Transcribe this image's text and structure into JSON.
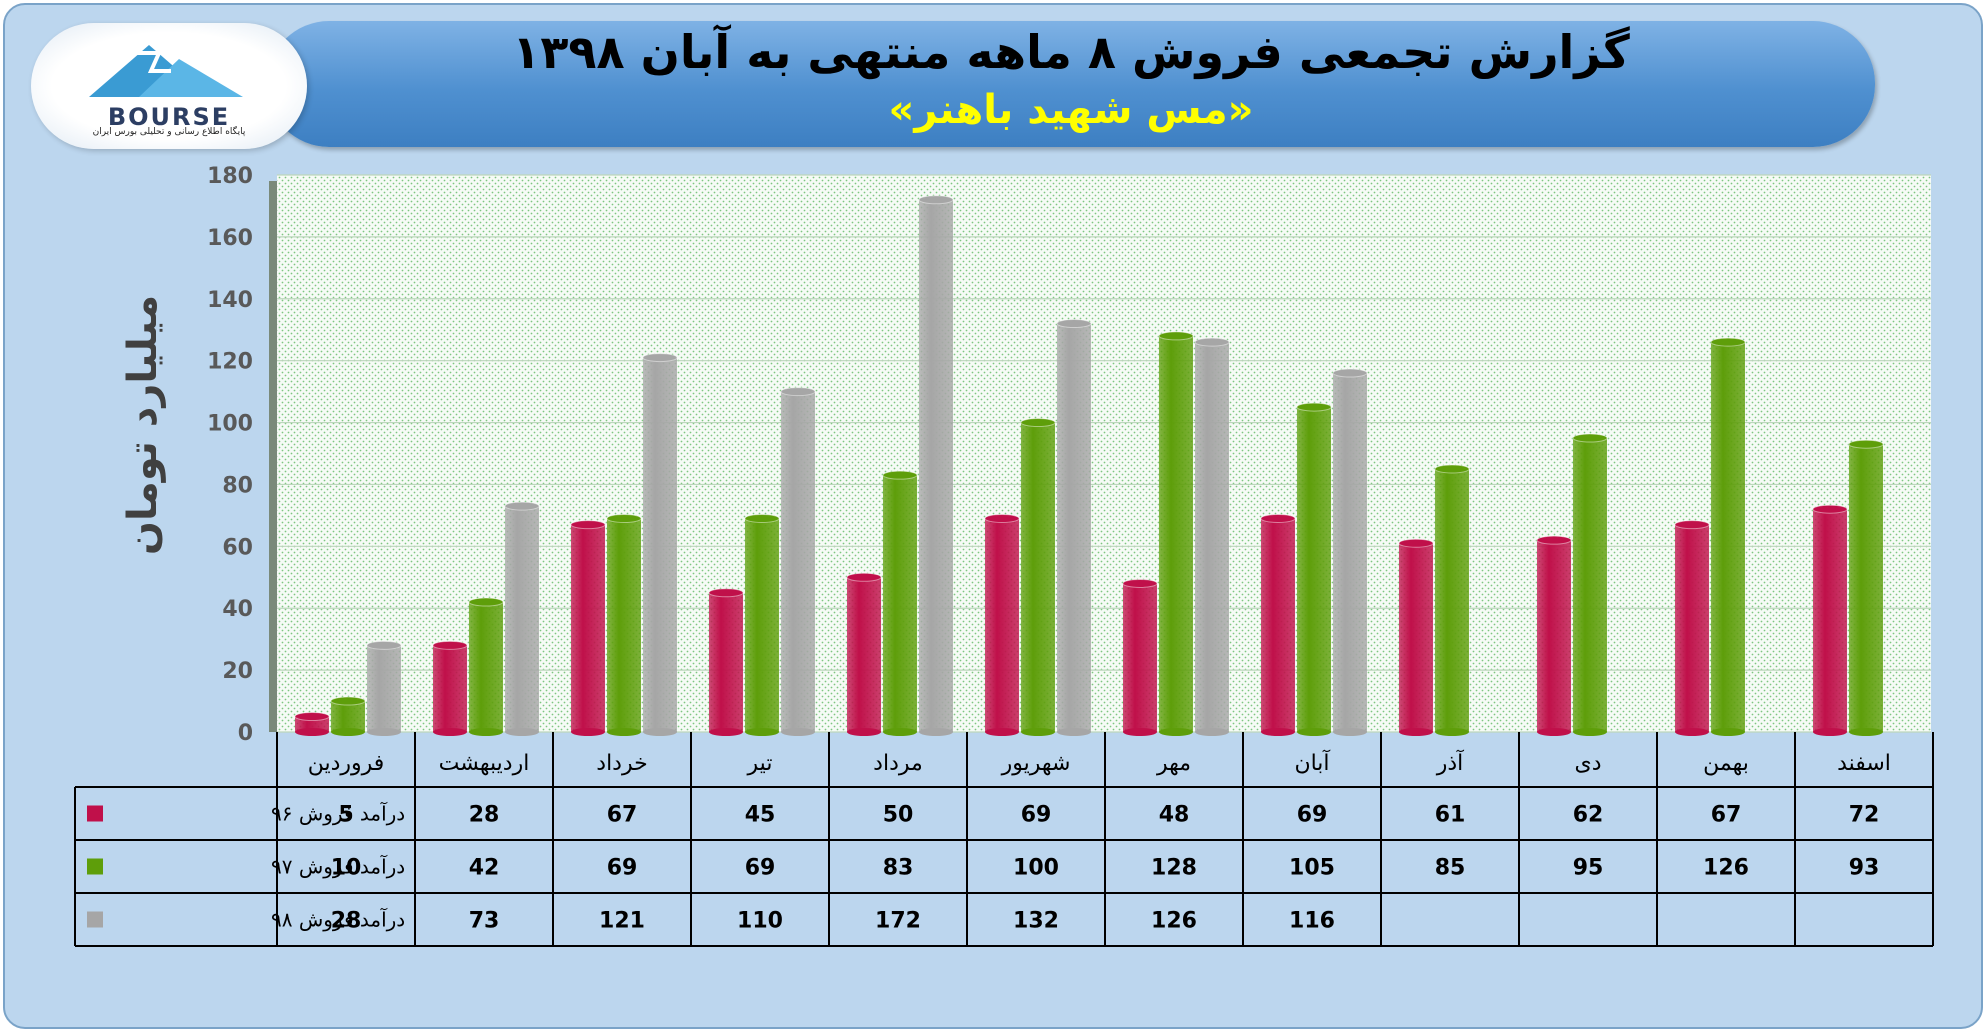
{
  "header": {
    "title": "گزارش تجمعی فروش ۸ ماهه منتهی به آبان ۱۳۹۸",
    "subtitle": "«مس شهید باهنر»"
  },
  "logo": {
    "text": "BOURSE",
    "subtitle": "پایگاه اطلاع رسانی و تحلیلی بورس ایران"
  },
  "chart_data": {
    "type": "bar",
    "ylabel": "میلیارد تومان",
    "ylim": [
      0,
      180
    ],
    "yticks": [
      0,
      20,
      40,
      60,
      80,
      100,
      120,
      140,
      160,
      180
    ],
    "grid": true,
    "data_table": true,
    "categories": [
      "فروردین",
      "اردیبهشت",
      "خرداد",
      "تیر",
      "مرداد",
      "شهریور",
      "مهر",
      "آبان",
      "آذر",
      "دی",
      "بهمن",
      "اسفند"
    ],
    "series": [
      {
        "name": "درآمد فروش ۹۶",
        "color": "#c0104a",
        "values": [
          5,
          28,
          67,
          45,
          50,
          69,
          48,
          69,
          61,
          62,
          67,
          72
        ]
      },
      {
        "name": "درآمد فروش ۹۷",
        "color": "#5e9e0a",
        "values": [
          10,
          42,
          69,
          69,
          83,
          100,
          128,
          105,
          85,
          95,
          126,
          93
        ]
      },
      {
        "name": "درآمد فروش ۹۸",
        "color": "#a6a6a6",
        "values": [
          28,
          73,
          121,
          110,
          172,
          132,
          126,
          116,
          null,
          null,
          null,
          null
        ]
      }
    ]
  }
}
